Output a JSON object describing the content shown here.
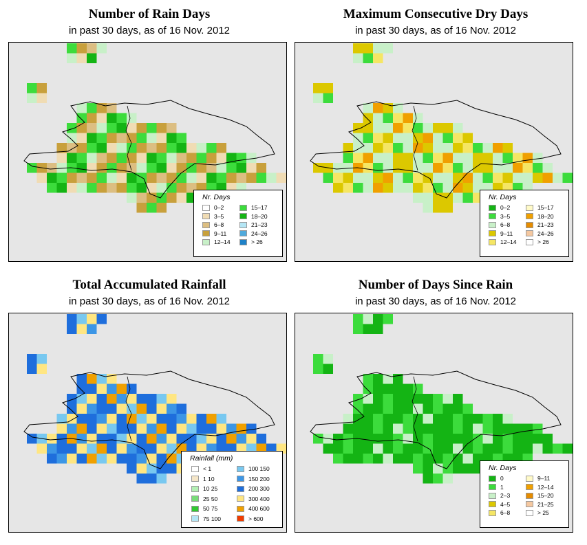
{
  "subtitle": "in past 30 days, as of  16 Nov. 2012",
  "panels": [
    {
      "title": "Number of Rain Days",
      "legend_title": "Nr. Days",
      "legend": [
        {
          "label": "0–2",
          "color": "#ffffff"
        },
        {
          "label": "3–5",
          "color": "#f0dcb4"
        },
        {
          "label": "6–8",
          "color": "#dcbe82"
        },
        {
          "label": "9–11",
          "color": "#c8a03c"
        },
        {
          "label": "12–14",
          "color": "#c8f0c8"
        },
        {
          "label": "15–17",
          "color": "#3cdc3c"
        },
        {
          "label": "18–20",
          "color": "#14b414"
        },
        {
          "label": "21–23",
          "color": "#b4e6f5"
        },
        {
          "label": "24–26",
          "color": "#50aadc"
        },
        {
          "label": "> 26",
          "color": "#1e82c8"
        }
      ]
    },
    {
      "title": "Maximum Consecutive Dry Days",
      "legend_title": "Nr. Days",
      "legend": [
        {
          "label": "0–2",
          "color": "#14b414"
        },
        {
          "label": "3–5",
          "color": "#3cdc3c"
        },
        {
          "label": "6–8",
          "color": "#c8f0c8"
        },
        {
          "label": "9–11",
          "color": "#dcc800"
        },
        {
          "label": "12–14",
          "color": "#f5e664"
        },
        {
          "label": "15–17",
          "color": "#fffac8"
        },
        {
          "label": "18–20",
          "color": "#f0a000"
        },
        {
          "label": "21–23",
          "color": "#e68c00"
        },
        {
          "label": "24–26",
          "color": "#f5c8a0"
        },
        {
          "label": "> 26",
          "color": "#ffffff"
        }
      ]
    },
    {
      "title": "Total Accumulated Rainfall",
      "legend_title": "Rainfall (mm)",
      "legend": [
        {
          "label": "< 1",
          "color": "#ffffff"
        },
        {
          "label": "1   10",
          "color": "#f5e6c8"
        },
        {
          "label": "10   25",
          "color": "#b4f0b4"
        },
        {
          "label": "25   50",
          "color": "#78dc78"
        },
        {
          "label": "50   75",
          "color": "#32c832"
        },
        {
          "label": "75  100",
          "color": "#b4e6f5"
        },
        {
          "label": "100  150",
          "color": "#78c8f0"
        },
        {
          "label": "150  200",
          "color": "#3c96e6"
        },
        {
          "label": "200  300",
          "color": "#1e6edc"
        },
        {
          "label": "300  400",
          "color": "#ffe682"
        },
        {
          "label": "400  600",
          "color": "#f0a000"
        },
        {
          "label": "> 600",
          "color": "#f03c00"
        }
      ]
    },
    {
      "title": "Number of Days Since Rain",
      "legend_title": "Nr. Days",
      "legend": [
        {
          "label": "0",
          "color": "#14b414"
        },
        {
          "label": "1",
          "color": "#3cdc3c"
        },
        {
          "label": "2–3",
          "color": "#c8f0c8"
        },
        {
          "label": "4–5",
          "color": "#dcc800"
        },
        {
          "label": "6–8",
          "color": "#f5e664"
        },
        {
          "label": "9–11",
          "color": "#fffac8"
        },
        {
          "label": "12–14",
          "color": "#f0a000"
        },
        {
          "label": "15–20",
          "color": "#e68c00"
        },
        {
          "label": "21–25",
          "color": "#f5c8a0"
        },
        {
          "label": "> 25",
          "color": "#ffffff"
        }
      ]
    }
  ]
}
